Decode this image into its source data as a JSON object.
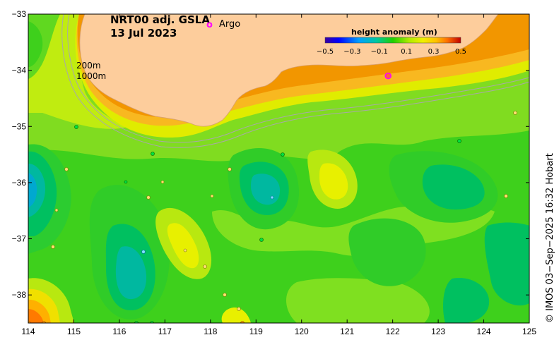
{
  "title": {
    "product": "NRT00 adj. GSLA",
    "date": "13 Jul 2023"
  },
  "legend": {
    "argo_marker": "o",
    "argo_label": "Argo",
    "argo_color": "#ff00ff"
  },
  "colorbar": {
    "label": "height anomaly (m)",
    "tick_labels": [
      "−0.5",
      "−0.3",
      "−0.1",
      "0.1",
      "0.3",
      "0.5"
    ],
    "colors": [
      "#3a00a0",
      "#0000ff",
      "#0080ff",
      "#00c8c8",
      "#00c060",
      "#20d000",
      "#80e800",
      "#e0f000",
      "#ffc000",
      "#ff8000",
      "#ff2000",
      "#c00000"
    ]
  },
  "contour_labels": [
    "200m",
    "1000m"
  ],
  "credit": "© IMOS 03−Sep−2025 16:32 Hobart",
  "axes": {
    "x_ticks": [
      "114",
      "115",
      "116",
      "117",
      "118",
      "119",
      "120",
      "121",
      "122",
      "123",
      "124",
      "125"
    ],
    "y_ticks": [
      "−33",
      "−34",
      "−35",
      "−36",
      "−37",
      "−38"
    ]
  },
  "map": {
    "lon_range": [
      114,
      125
    ],
    "lat_range": [
      -38.5,
      -33
    ],
    "land_color": "#fdcd9c",
    "ocean_base_color": "#80dc20",
    "coast_color": "#e88200",
    "shelf_color": "#f8b820",
    "argo_floats": [
      {
        "lon": 121.9,
        "lat": -34.1
      }
    ]
  }
}
